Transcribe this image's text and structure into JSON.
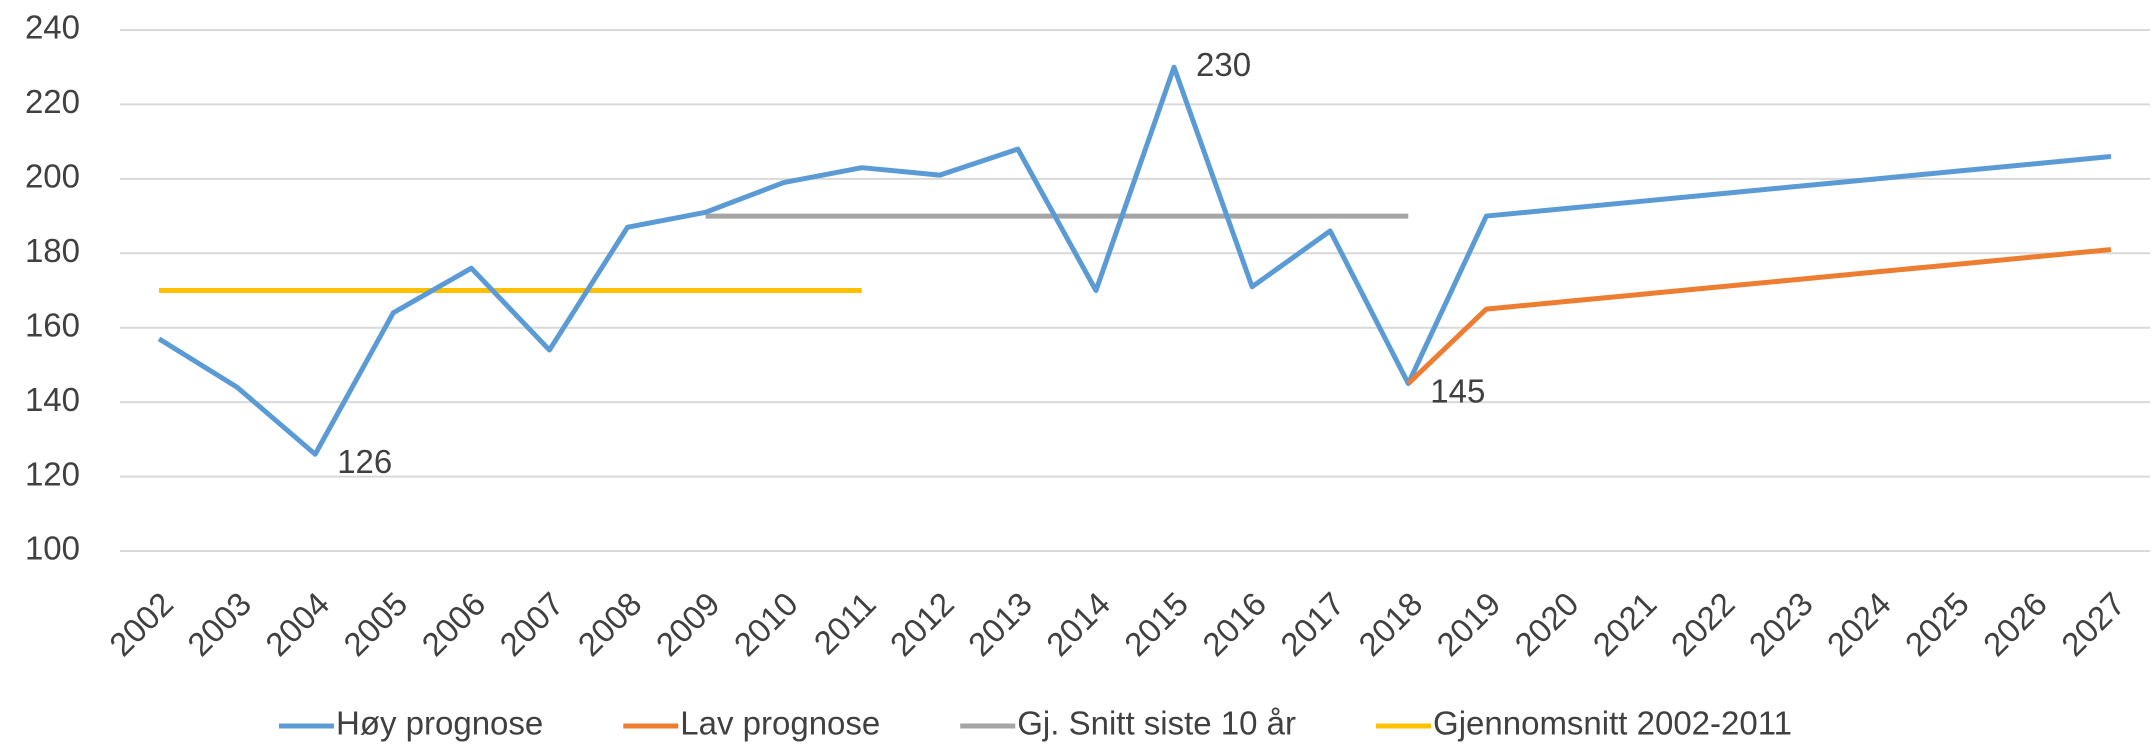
{
  "chart_data": {
    "type": "line",
    "categories": [
      "2002",
      "2003",
      "2004",
      "2005",
      "2006",
      "2007",
      "2008",
      "2009",
      "2010",
      "2011",
      "2012",
      "2013",
      "2014",
      "2015",
      "2016",
      "2017",
      "2018",
      "2019",
      "2020",
      "2021",
      "2022",
      "2023",
      "2024",
      "2025",
      "2026",
      "2027"
    ],
    "series": [
      {
        "name": "Høy prognose",
        "color": "#5b9bd5",
        "values": [
          157,
          144,
          126,
          164,
          176,
          154,
          187,
          191,
          199,
          203,
          201,
          208,
          170,
          230,
          171,
          186,
          145,
          190,
          192,
          194,
          196,
          198,
          200,
          202,
          204,
          206
        ]
      },
      {
        "name": "Lav prognose",
        "color": "#ed7d31",
        "values": [
          null,
          null,
          null,
          null,
          null,
          null,
          null,
          null,
          null,
          null,
          null,
          null,
          null,
          null,
          null,
          null,
          145,
          165,
          167,
          169,
          171,
          173,
          175,
          177,
          179,
          181
        ]
      },
      {
        "name": "Gj. Snitt siste 10 år",
        "color": "#a5a5a5",
        "values": [
          null,
          null,
          null,
          null,
          null,
          null,
          null,
          190,
          190,
          190,
          190,
          190,
          190,
          190,
          190,
          190,
          190,
          null,
          null,
          null,
          null,
          null,
          null,
          null,
          null,
          null
        ]
      },
      {
        "name": "Gjennomsnitt 2002-2011",
        "color": "#ffc000",
        "values": [
          170,
          170,
          170,
          170,
          170,
          170,
          170,
          170,
          170,
          170,
          null,
          null,
          null,
          null,
          null,
          null,
          null,
          null,
          null,
          null,
          null,
          null,
          null,
          null,
          null,
          null
        ]
      }
    ],
    "labeled_points": [
      [
        0,
        2
      ],
      [
        0,
        13
      ],
      [
        0,
        16
      ]
    ],
    "ylim": [
      100,
      240
    ],
    "yticks": [
      100,
      120,
      140,
      160,
      180,
      200,
      220,
      240
    ],
    "grid": true,
    "legend": "bottom"
  }
}
